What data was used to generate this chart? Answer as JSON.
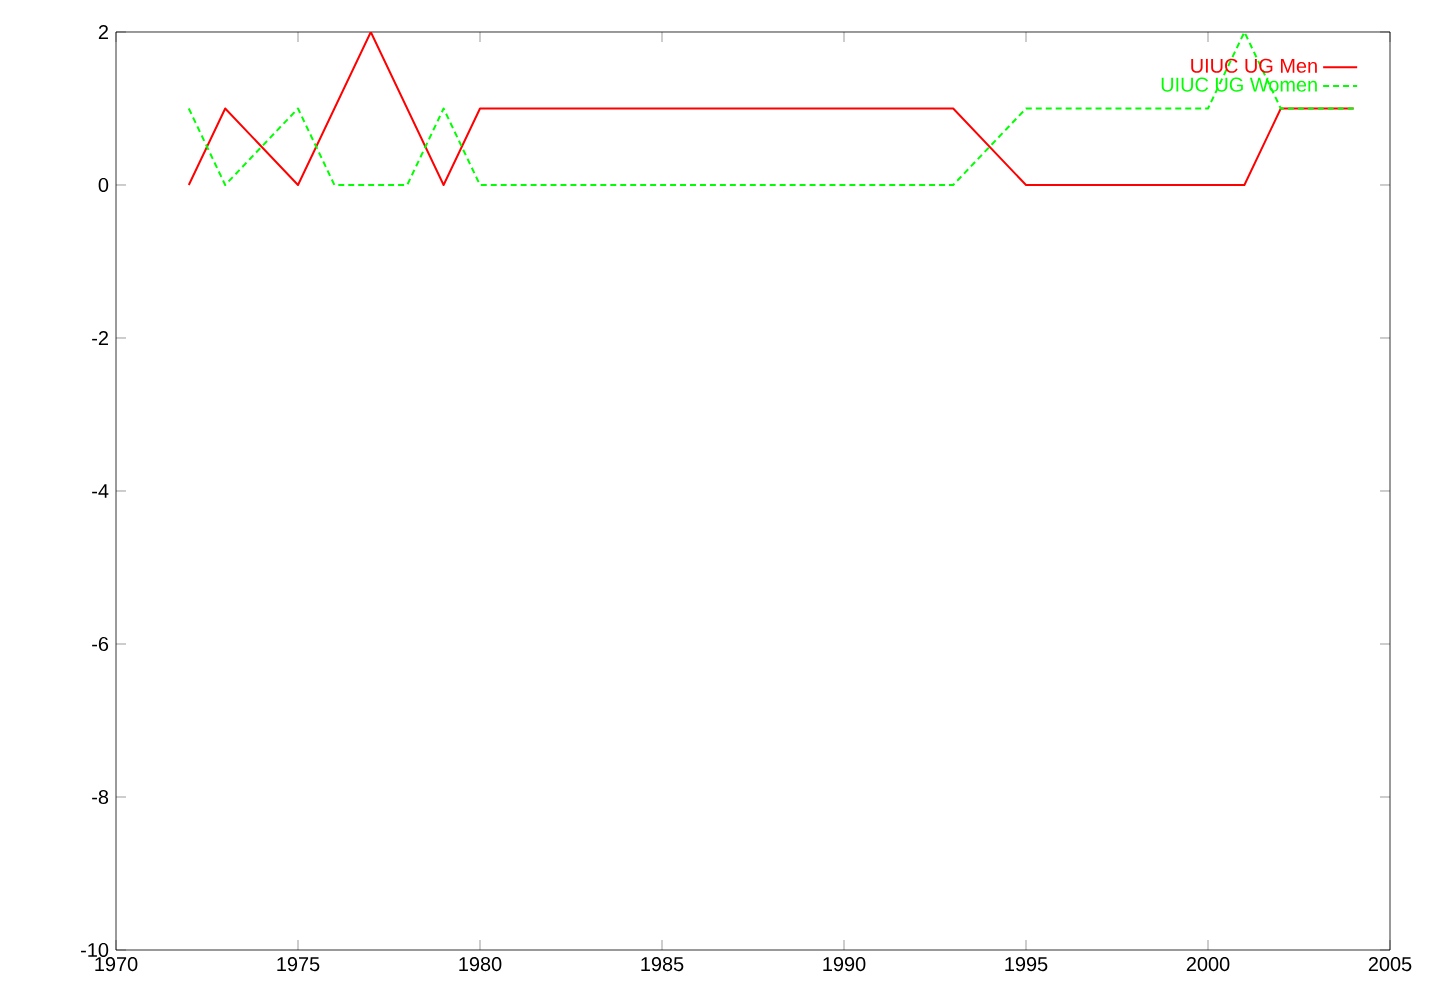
{
  "chart_data": {
    "type": "line",
    "xlim": [
      1970,
      2005
    ],
    "ylim": [
      -10,
      2
    ],
    "xticks": [
      1970,
      1975,
      1980,
      1985,
      1990,
      1995,
      2000,
      2005
    ],
    "yticks": [
      -10,
      -8,
      -6,
      -4,
      -2,
      0,
      2
    ],
    "grid": false,
    "legend": "top right",
    "marker": "none",
    "series": [
      {
        "name": "UIUC UG Men",
        "color": "#ff0000",
        "line_style": "solid",
        "x": [
          1972,
          1973,
          1975,
          1977,
          1979,
          1980,
          1993,
          1995,
          2001,
          2002,
          2004
        ],
        "values": [
          0,
          1,
          0,
          2,
          0,
          1,
          1,
          0,
          0,
          1,
          1
        ]
      },
      {
        "name": "UIUC UG Women",
        "color": "#00ff00",
        "line_style": "dashed",
        "x": [
          1972,
          1973,
          1975,
          1976,
          1978,
          1979,
          1980,
          1993,
          1995,
          2000,
          2001,
          2002,
          2004
        ],
        "values": [
          1,
          0,
          1,
          0,
          0,
          1,
          0,
          0,
          1,
          1,
          2,
          1,
          1
        ]
      }
    ]
  }
}
